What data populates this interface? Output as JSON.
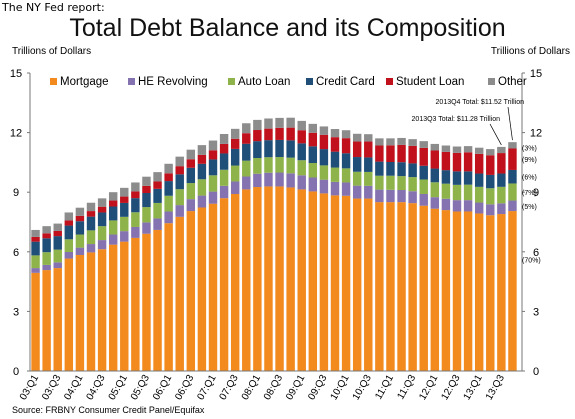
{
  "header_note": "The NY Fed report:",
  "source": "Source: FRBNY Consumer Credit Panel/Equifax",
  "colors": {
    "Mortgage": "#f28a1e",
    "HE Revolving": "#8572b0",
    "Auto Loan": "#8db34a",
    "Credit Card": "#1f4e79",
    "Student Loan": "#c0111d",
    "Other": "#8c8c8c"
  },
  "chart_data": {
    "type": "bar",
    "stacked": true,
    "title": "Total Debt Balance and its Composition",
    "ylabel_left": "Trillions of Dollars",
    "ylabel_right": "Trillions of Dollars",
    "ylim": [
      0,
      15
    ],
    "yticks": [
      0,
      3,
      6,
      9,
      12,
      15
    ],
    "grid": false,
    "legend_position": "top",
    "x_ticklabels": [
      "03:Q1",
      "03:Q3",
      "04:Q1",
      "04:Q3",
      "05:Q1",
      "05:Q3",
      "06:Q1",
      "06:Q3",
      "07:Q1",
      "07:Q3",
      "08:Q1",
      "08:Q3",
      "09:Q1",
      "09:Q3",
      "10:Q1",
      "10:Q3",
      "11:Q1",
      "11:Q3",
      "12:Q1",
      "12:Q3",
      "13:Q1",
      "13:Q3"
    ],
    "categories": [
      "03:Q1",
      "03:Q2",
      "03:Q3",
      "03:Q4",
      "04:Q1",
      "04:Q2",
      "04:Q3",
      "04:Q4",
      "05:Q1",
      "05:Q2",
      "05:Q3",
      "05:Q4",
      "06:Q1",
      "06:Q2",
      "06:Q3",
      "06:Q4",
      "07:Q1",
      "07:Q2",
      "07:Q3",
      "07:Q4",
      "08:Q1",
      "08:Q2",
      "08:Q3",
      "08:Q4",
      "09:Q1",
      "09:Q2",
      "09:Q3",
      "09:Q4",
      "10:Q1",
      "10:Q2",
      "10:Q3",
      "10:Q4",
      "11:Q1",
      "11:Q2",
      "11:Q3",
      "11:Q4",
      "12:Q1",
      "12:Q2",
      "12:Q3",
      "12:Q4",
      "13:Q1",
      "13:Q2",
      "13:Q3",
      "13:Q4"
    ],
    "series": [
      {
        "name": "Mortgage",
        "values": [
          4.94,
          5.08,
          5.18,
          5.66,
          5.84,
          5.97,
          6.13,
          6.36,
          6.51,
          6.7,
          6.91,
          7.1,
          7.44,
          7.76,
          8.05,
          8.23,
          8.42,
          8.7,
          8.91,
          9.14,
          9.26,
          9.29,
          9.29,
          9.24,
          9.14,
          9.04,
          8.94,
          8.84,
          8.82,
          8.68,
          8.68,
          8.5,
          8.5,
          8.5,
          8.45,
          8.32,
          8.17,
          8.1,
          8.03,
          8.03,
          7.93,
          7.84,
          7.9,
          8.05
        ]
      },
      {
        "name": "HE Revolving",
        "values": [
          0.24,
          0.26,
          0.29,
          0.33,
          0.37,
          0.42,
          0.46,
          0.51,
          0.53,
          0.55,
          0.57,
          0.58,
          0.59,
          0.59,
          0.6,
          0.6,
          0.61,
          0.62,
          0.63,
          0.65,
          0.67,
          0.69,
          0.7,
          0.71,
          0.71,
          0.7,
          0.69,
          0.68,
          0.67,
          0.65,
          0.64,
          0.63,
          0.62,
          0.61,
          0.6,
          0.59,
          0.58,
          0.57,
          0.57,
          0.57,
          0.55,
          0.55,
          0.54,
          0.53
        ]
      },
      {
        "name": "Auto Loan",
        "values": [
          0.64,
          0.64,
          0.64,
          0.64,
          0.66,
          0.69,
          0.7,
          0.71,
          0.72,
          0.74,
          0.77,
          0.78,
          0.79,
          0.8,
          0.81,
          0.82,
          0.82,
          0.81,
          0.8,
          0.8,
          0.79,
          0.78,
          0.78,
          0.79,
          0.76,
          0.73,
          0.72,
          0.72,
          0.71,
          0.7,
          0.7,
          0.7,
          0.71,
          0.7,
          0.71,
          0.73,
          0.75,
          0.76,
          0.77,
          0.78,
          0.79,
          0.81,
          0.83,
          0.86
        ]
      },
      {
        "name": "Credit Card",
        "values": [
          0.69,
          0.7,
          0.68,
          0.69,
          0.67,
          0.69,
          0.69,
          0.7,
          0.7,
          0.71,
          0.71,
          0.71,
          0.74,
          0.75,
          0.77,
          0.78,
          0.8,
          0.82,
          0.84,
          0.85,
          0.85,
          0.86,
          0.86,
          0.87,
          0.85,
          0.84,
          0.82,
          0.8,
          0.76,
          0.74,
          0.73,
          0.71,
          0.69,
          0.7,
          0.69,
          0.69,
          0.69,
          0.68,
          0.68,
          0.67,
          0.67,
          0.67,
          0.67,
          0.68
        ]
      },
      {
        "name": "Student Loan",
        "values": [
          0.24,
          0.25,
          0.26,
          0.26,
          0.27,
          0.28,
          0.29,
          0.3,
          0.32,
          0.34,
          0.36,
          0.37,
          0.39,
          0.41,
          0.43,
          0.45,
          0.46,
          0.48,
          0.51,
          0.53,
          0.56,
          0.58,
          0.61,
          0.64,
          0.66,
          0.68,
          0.72,
          0.73,
          0.76,
          0.78,
          0.8,
          0.81,
          0.84,
          0.87,
          0.88,
          0.9,
          0.91,
          0.92,
          0.93,
          0.96,
          0.99,
          0.99,
          1.03,
          1.08
        ]
      },
      {
        "name": "Other",
        "values": [
          0.35,
          0.36,
          0.37,
          0.4,
          0.41,
          0.42,
          0.42,
          0.42,
          0.44,
          0.45,
          0.46,
          0.47,
          0.48,
          0.48,
          0.48,
          0.49,
          0.49,
          0.5,
          0.5,
          0.5,
          0.51,
          0.51,
          0.5,
          0.5,
          0.47,
          0.45,
          0.42,
          0.41,
          0.4,
          0.39,
          0.37,
          0.36,
          0.35,
          0.35,
          0.34,
          0.34,
          0.33,
          0.32,
          0.32,
          0.31,
          0.31,
          0.31,
          0.31,
          0.32
        ]
      }
    ],
    "annotations": [
      {
        "text": "2013Q4 Total: $11.52 Trillion",
        "target": "13:Q4"
      },
      {
        "text": "2013Q3 Total: $11.28 Trillion",
        "target": "13:Q3"
      }
    ],
    "share_labels": [
      {
        "text": "(3%)",
        "series": "Other"
      },
      {
        "text": "(9%)",
        "series": "Student Loan"
      },
      {
        "text": "(6%)",
        "series": "Credit Card"
      },
      {
        "text": "(7%)",
        "series": "Auto Loan"
      },
      {
        "text": "(5%)",
        "series": "HE Revolving"
      },
      {
        "text": "(70%)",
        "series": "Mortgage"
      }
    ]
  }
}
